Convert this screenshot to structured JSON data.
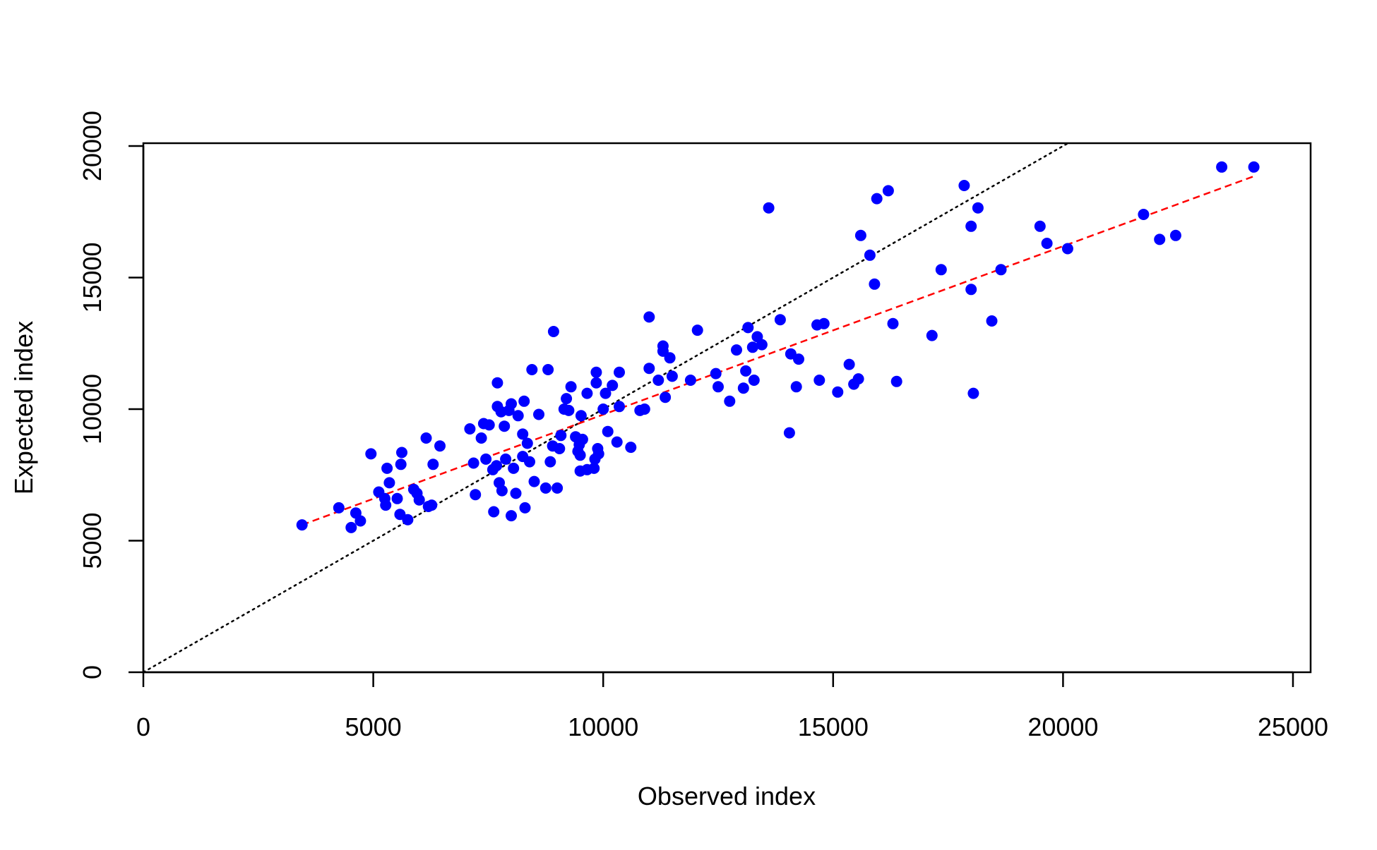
{
  "chart_data": {
    "type": "scatter",
    "xlabel": "Observed index",
    "ylabel": "Expected index",
    "xlim": [
      0,
      25000
    ],
    "ylim": [
      0,
      20000
    ],
    "x_ticks": [
      0,
      5000,
      10000,
      15000,
      20000,
      25000
    ],
    "y_ticks": [
      0,
      5000,
      10000,
      15000,
      20000
    ],
    "x_tick_labels": [
      "0",
      "5000",
      "10000",
      "15000",
      "20000",
      "25000"
    ],
    "y_tick_labels": [
      "0",
      "5000",
      "10000",
      "15000",
      "20000"
    ],
    "grid": false,
    "point_color": "#0000ff",
    "identity_line": {
      "from": [
        0,
        0
      ],
      "to": [
        20100,
        20100
      ],
      "color": "#000000",
      "style": "dotted"
    },
    "fit_line": {
      "from": [
        3450,
        5600
      ],
      "to": [
        24150,
        18850
      ],
      "color": "#ff0000",
      "style": "dashed"
    },
    "points": [
      [
        3450,
        5600
      ],
      [
        4250,
        6250
      ],
      [
        4520,
        5500
      ],
      [
        4620,
        6050
      ],
      [
        4720,
        5750
      ],
      [
        4950,
        8300
      ],
      [
        5120,
        6850
      ],
      [
        5250,
        6600
      ],
      [
        5270,
        6350
      ],
      [
        5300,
        7750
      ],
      [
        5350,
        7200
      ],
      [
        5520,
        6600
      ],
      [
        5580,
        6000
      ],
      [
        5600,
        7900
      ],
      [
        5620,
        8350
      ],
      [
        5750,
        5800
      ],
      [
        5880,
        6950
      ],
      [
        5950,
        6800
      ],
      [
        6000,
        6550
      ],
      [
        6150,
        8900
      ],
      [
        6200,
        6300
      ],
      [
        6270,
        6350
      ],
      [
        6300,
        7900
      ],
      [
        6450,
        8600
      ],
      [
        7100,
        9250
      ],
      [
        7180,
        7950
      ],
      [
        7220,
        6750
      ],
      [
        7350,
        8900
      ],
      [
        7400,
        9450
      ],
      [
        7450,
        8100
      ],
      [
        7520,
        9400
      ],
      [
        7600,
        7700
      ],
      [
        7620,
        6100
      ],
      [
        7680,
        7850
      ],
      [
        7700,
        10100
      ],
      [
        7700,
        11000
      ],
      [
        7740,
        7200
      ],
      [
        7780,
        9900
      ],
      [
        7800,
        6900
      ],
      [
        7850,
        9350
      ],
      [
        7880,
        8100
      ],
      [
        7950,
        9950
      ],
      [
        8000,
        10200
      ],
      [
        8000,
        5950
      ],
      [
        8050,
        7750
      ],
      [
        8100,
        6800
      ],
      [
        8150,
        9750
      ],
      [
        8250,
        9050
      ],
      [
        8250,
        8200
      ],
      [
        8280,
        10300
      ],
      [
        8300,
        6250
      ],
      [
        8350,
        8700
      ],
      [
        8400,
        8000
      ],
      [
        8450,
        11500
      ],
      [
        8500,
        7250
      ],
      [
        8600,
        9800
      ],
      [
        8750,
        7000
      ],
      [
        8800,
        11500
      ],
      [
        8850,
        8000
      ],
      [
        8900,
        8600
      ],
      [
        8920,
        12950
      ],
      [
        9000,
        7000
      ],
      [
        9050,
        8500
      ],
      [
        9080,
        9000
      ],
      [
        9150,
        10000
      ],
      [
        9200,
        10400
      ],
      [
        9250,
        9950
      ],
      [
        9300,
        10850
      ],
      [
        9400,
        8950
      ],
      [
        9450,
        8400
      ],
      [
        9480,
        8650
      ],
      [
        9500,
        7650
      ],
      [
        9500,
        8250
      ],
      [
        9520,
        9750
      ],
      [
        9550,
        8850
      ],
      [
        9650,
        10600
      ],
      [
        9650,
        7700
      ],
      [
        9800,
        7750
      ],
      [
        9820,
        8100
      ],
      [
        9850,
        11000
      ],
      [
        9850,
        11400
      ],
      [
        9880,
        8500
      ],
      [
        9900,
        8300
      ],
      [
        10000,
        10000
      ],
      [
        10050,
        10600
      ],
      [
        10100,
        9150
      ],
      [
        10200,
        10900
      ],
      [
        10300,
        8750
      ],
      [
        10350,
        10100
      ],
      [
        10350,
        11400
      ],
      [
        10600,
        8550
      ],
      [
        10800,
        9950
      ],
      [
        10900,
        10000
      ],
      [
        11000,
        11550
      ],
      [
        11000,
        13500
      ],
      [
        11200,
        11100
      ],
      [
        11300,
        12400
      ],
      [
        11300,
        12200
      ],
      [
        11350,
        10450
      ],
      [
        11450,
        11950
      ],
      [
        11500,
        11250
      ],
      [
        11900,
        11100
      ],
      [
        12050,
        13000
      ],
      [
        12450,
        11350
      ],
      [
        12500,
        10850
      ],
      [
        12750,
        10300
      ],
      [
        12900,
        12250
      ],
      [
        13050,
        10800
      ],
      [
        13100,
        11450
      ],
      [
        13150,
        13100
      ],
      [
        13250,
        12350
      ],
      [
        13280,
        11100
      ],
      [
        13350,
        12750
      ],
      [
        13450,
        12450
      ],
      [
        13600,
        17650
      ],
      [
        13850,
        13400
      ],
      [
        14050,
        9100
      ],
      [
        14080,
        12100
      ],
      [
        14200,
        10850
      ],
      [
        14250,
        11900
      ],
      [
        14650,
        13200
      ],
      [
        14700,
        11100
      ],
      [
        14800,
        13250
      ],
      [
        15100,
        10650
      ],
      [
        15350,
        11700
      ],
      [
        15450,
        10950
      ],
      [
        15550,
        11150
      ],
      [
        15600,
        16600
      ],
      [
        15800,
        15850
      ],
      [
        15900,
        14750
      ],
      [
        15950,
        18000
      ],
      [
        16200,
        18300
      ],
      [
        16300,
        13250
      ],
      [
        16380,
        11050
      ],
      [
        17150,
        12800
      ],
      [
        17350,
        15300
      ],
      [
        17850,
        18500
      ],
      [
        18000,
        16950
      ],
      [
        18000,
        14550
      ],
      [
        18050,
        10600
      ],
      [
        18150,
        17650
      ],
      [
        18450,
        13350
      ],
      [
        18650,
        15300
      ],
      [
        19500,
        16950
      ],
      [
        19650,
        16300
      ],
      [
        20100,
        16100
      ],
      [
        21750,
        17400
      ],
      [
        22100,
        16450
      ],
      [
        22450,
        16600
      ],
      [
        23450,
        19200
      ],
      [
        24150,
        19200
      ]
    ]
  }
}
